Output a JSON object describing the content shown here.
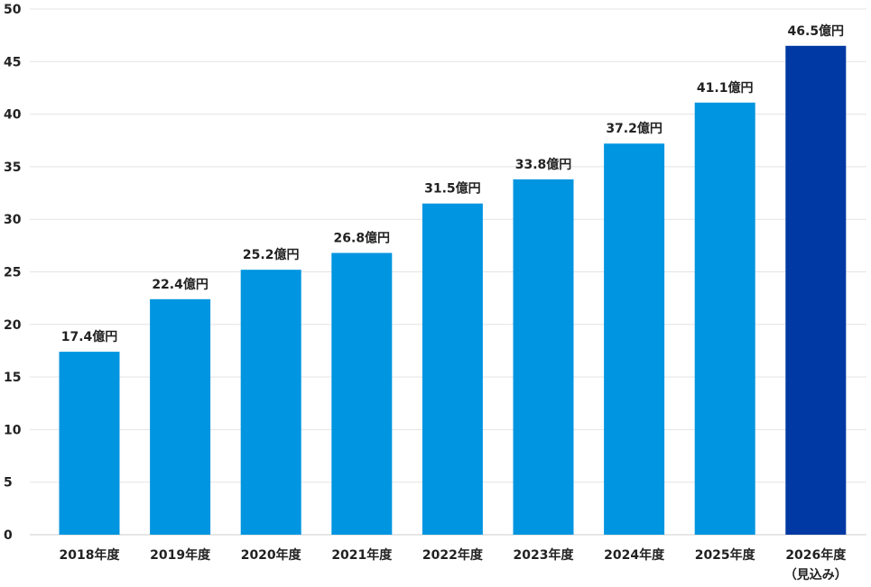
{
  "chart_data": {
    "type": "bar",
    "categories": [
      "2018年度",
      "2019年度",
      "2020年度",
      "2021年度",
      "2022年度",
      "2023年度",
      "2024年度",
      "2025年度",
      "2026年度"
    ],
    "category_sublabels": [
      "",
      "",
      "",
      "",
      "",
      "",
      "",
      "",
      "（見込み）"
    ],
    "values": [
      17.4,
      22.4,
      25.2,
      26.8,
      31.5,
      33.8,
      37.2,
      41.1,
      46.5
    ],
    "value_labels": [
      "17.4億円",
      "22.4億円",
      "25.2億円",
      "26.8億円",
      "31.5億円",
      "33.8億円",
      "37.2億円",
      "41.1億円",
      "46.5億円"
    ],
    "y_ticks": [
      "0",
      "5",
      "10",
      "15",
      "20",
      "25",
      "30",
      "35",
      "40",
      "45",
      "50"
    ],
    "ylim": [
      0,
      50
    ],
    "grid": true,
    "colors": {
      "bar": "#0095e0",
      "highlight_bar": "#0039a3",
      "grid": "#e3e3e3",
      "text": "#222222"
    },
    "highlight_index": 8
  }
}
